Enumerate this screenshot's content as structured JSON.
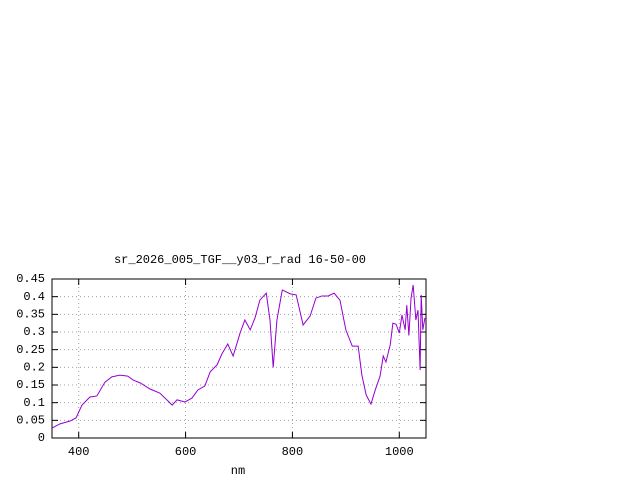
{
  "chart_data": {
    "type": "line",
    "title": "sr_2026_005_TGF__y03_r_rad 16-50-00",
    "xlabel": "nm",
    "x": [
      350,
      365,
      384,
      395,
      406,
      421,
      434,
      449,
      462,
      477,
      492,
      502,
      515,
      533,
      552,
      565,
      575,
      584,
      599,
      612,
      623,
      636,
      646,
      659,
      668,
      679,
      689,
      702,
      711,
      721,
      730,
      739,
      751,
      758,
      764,
      771,
      781,
      796,
      807,
      820,
      833,
      844,
      855,
      867,
      878,
      889,
      900,
      912,
      923,
      930,
      938,
      947,
      955,
      964,
      970,
      975,
      983,
      988,
      994,
      1000,
      1005,
      1011,
      1014,
      1018,
      1022,
      1026,
      1031,
      1035,
      1039,
      1041,
      1044,
      1048
    ],
    "series": [
      {
        "color": "#9400d3",
        "values": [
          0.028,
          0.04,
          0.048,
          0.057,
          0.093,
          0.116,
          0.119,
          0.158,
          0.173,
          0.178,
          0.175,
          0.164,
          0.156,
          0.139,
          0.127,
          0.108,
          0.093,
          0.108,
          0.102,
          0.113,
          0.136,
          0.147,
          0.187,
          0.207,
          0.238,
          0.266,
          0.232,
          0.297,
          0.334,
          0.306,
          0.34,
          0.39,
          0.41,
          0.334,
          0.2,
          0.334,
          0.419,
          0.408,
          0.405,
          0.32,
          0.345,
          0.396,
          0.402,
          0.402,
          0.41,
          0.39,
          0.306,
          0.26,
          0.26,
          0.178,
          0.122,
          0.096,
          0.136,
          0.175,
          0.232,
          0.215,
          0.263,
          0.325,
          0.322,
          0.297,
          0.348,
          0.306,
          0.376,
          0.29,
          0.396,
          0.433,
          0.334,
          0.362,
          0.192,
          0.405,
          0.306,
          0.34
        ]
      }
    ],
    "xlim": [
      350,
      1050
    ],
    "xticks": [
      400,
      600,
      800,
      1000
    ],
    "ylim": [
      0,
      0.45
    ],
    "yticks": [
      0,
      0.05,
      0.1,
      0.15,
      0.2,
      0.25,
      0.3,
      0.35,
      0.4,
      0.45
    ],
    "grid": true
  }
}
